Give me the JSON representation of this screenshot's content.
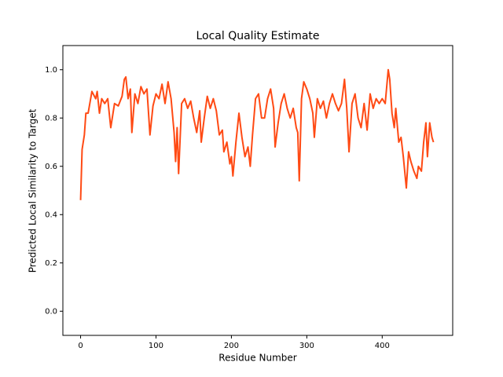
{
  "chart_data": {
    "type": "line",
    "title": "Local Quality Estimate",
    "x_label": "Residue Number",
    "y_label": "Predicted Local Similarity to Target",
    "x": [
      0,
      2,
      5,
      7,
      10,
      15,
      20,
      22,
      25,
      28,
      32,
      36,
      40,
      45,
      50,
      55,
      58,
      60,
      63,
      66,
      68,
      72,
      76,
      80,
      84,
      88,
      92,
      96,
      100,
      104,
      108,
      112,
      116,
      120,
      124,
      126,
      128,
      130,
      134,
      138,
      142,
      146,
      150,
      154,
      158,
      160,
      164,
      168,
      172,
      176,
      180,
      184,
      188,
      190,
      194,
      198,
      200,
      202,
      206,
      210,
      214,
      218,
      222,
      225,
      228,
      232,
      236,
      240,
      244,
      248,
      252,
      256,
      258,
      262,
      266,
      270,
      274,
      278,
      282,
      286,
      288,
      290,
      293,
      296,
      300,
      304,
      308,
      310,
      314,
      318,
      322,
      326,
      330,
      334,
      338,
      342,
      346,
      350,
      353,
      356,
      360,
      364,
      368,
      372,
      376,
      380,
      384,
      388,
      392,
      396,
      400,
      404,
      408,
      410,
      413,
      416,
      418,
      422,
      425,
      428,
      432,
      435,
      438,
      442,
      446,
      448,
      452,
      455,
      458,
      460,
      463,
      466,
      468
    ],
    "series": [
      {
        "color": "#ff4a14",
        "values": [
          0.46,
          0.67,
          0.73,
          0.82,
          0.82,
          0.91,
          0.88,
          0.91,
          0.82,
          0.88,
          0.86,
          0.88,
          0.76,
          0.86,
          0.85,
          0.89,
          0.96,
          0.97,
          0.88,
          0.92,
          0.74,
          0.9,
          0.86,
          0.93,
          0.9,
          0.92,
          0.73,
          0.85,
          0.9,
          0.88,
          0.94,
          0.86,
          0.95,
          0.88,
          0.74,
          0.62,
          0.76,
          0.57,
          0.86,
          0.88,
          0.84,
          0.87,
          0.8,
          0.74,
          0.83,
          0.7,
          0.8,
          0.89,
          0.84,
          0.88,
          0.83,
          0.73,
          0.75,
          0.66,
          0.7,
          0.61,
          0.64,
          0.56,
          0.7,
          0.82,
          0.72,
          0.64,
          0.68,
          0.6,
          0.73,
          0.88,
          0.9,
          0.8,
          0.8,
          0.88,
          0.92,
          0.84,
          0.68,
          0.78,
          0.86,
          0.9,
          0.84,
          0.8,
          0.84,
          0.76,
          0.74,
          0.54,
          0.88,
          0.95,
          0.92,
          0.88,
          0.82,
          0.72,
          0.88,
          0.84,
          0.87,
          0.8,
          0.86,
          0.9,
          0.86,
          0.83,
          0.86,
          0.96,
          0.84,
          0.66,
          0.86,
          0.9,
          0.8,
          0.76,
          0.86,
          0.75,
          0.9,
          0.84,
          0.88,
          0.86,
          0.88,
          0.86,
          1.0,
          0.96,
          0.82,
          0.76,
          0.84,
          0.7,
          0.72,
          0.64,
          0.51,
          0.66,
          0.62,
          0.58,
          0.55,
          0.6,
          0.58,
          0.7,
          0.78,
          0.64,
          0.78,
          0.72,
          0.7
        ]
      }
    ],
    "xlim": [
      -23.5,
      493.5
    ],
    "ylim": [
      -0.1,
      1.1
    ],
    "xticks": [
      0,
      100,
      200,
      300,
      400
    ],
    "yticks": [
      {
        "value": 0,
        "label": "0.0"
      },
      {
        "value": 0.2,
        "label": "0.2"
      },
      {
        "value": 0.4,
        "label": "0.4"
      },
      {
        "value": 0.6,
        "label": "0.6"
      },
      {
        "value": 0.8,
        "label": "0.8"
      },
      {
        "value": 1,
        "label": "1.0"
      }
    ]
  }
}
